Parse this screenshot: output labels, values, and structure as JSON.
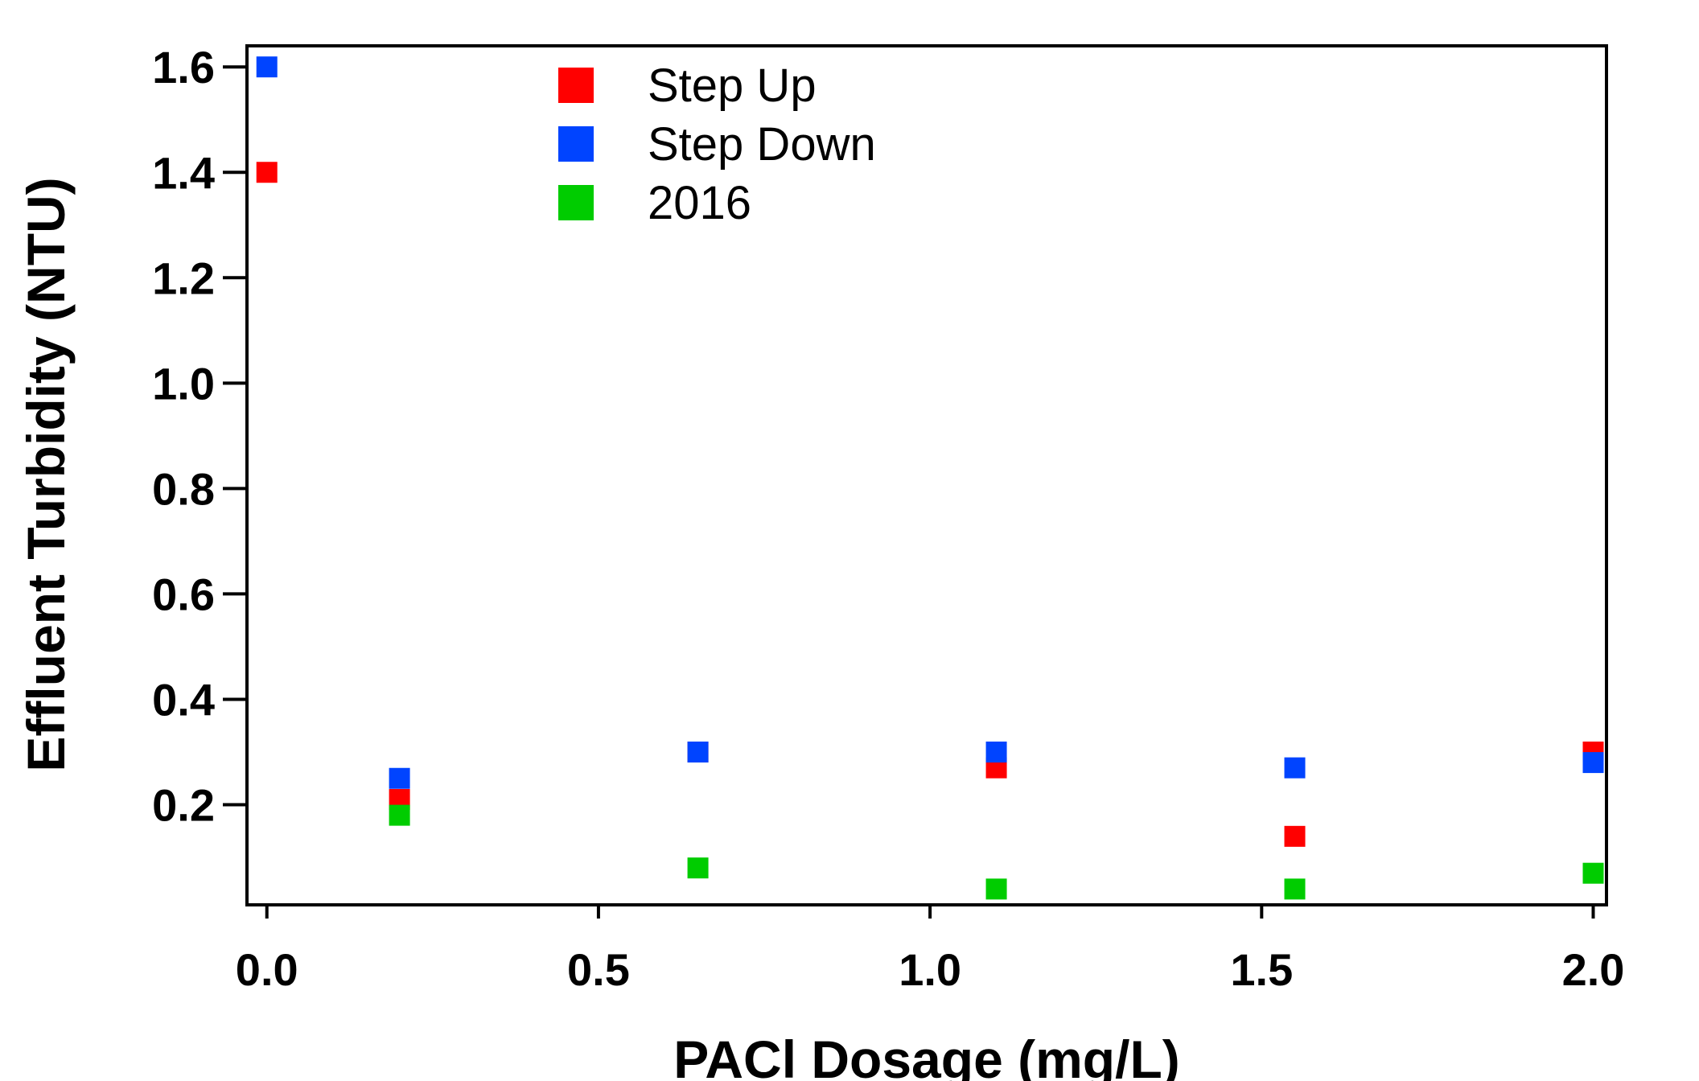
{
  "chart_data": {
    "type": "scatter",
    "xlabel": "PACl Dosage (mg/L)",
    "ylabel": "Effluent Turbidity (NTU)",
    "xlim": [
      -0.03,
      2.02
    ],
    "ylim": [
      0.01,
      1.64
    ],
    "x_ticks": [
      0.0,
      0.5,
      1.0,
      1.5,
      2.0
    ],
    "x_tick_labels": [
      "0.0",
      "0.5",
      "1.0",
      "1.5",
      "2.0"
    ],
    "y_ticks": [
      0.2,
      0.4,
      0.6,
      0.8,
      1.0,
      1.2,
      1.4,
      1.6
    ],
    "y_tick_labels": [
      "0.2",
      "0.4",
      "0.6",
      "0.8",
      "1.0",
      "1.2",
      "1.4",
      "1.6"
    ],
    "grid": false,
    "legend_position": "top-center",
    "series": [
      {
        "name": "Step Up",
        "color": "#ff0000",
        "marker": "square",
        "points": [
          [
            0.0,
            1.4
          ],
          [
            0.2,
            0.21
          ],
          [
            0.65,
            0.3
          ],
          [
            1.1,
            0.27
          ],
          [
            1.55,
            0.14
          ],
          [
            2.0,
            0.3
          ]
        ]
      },
      {
        "name": "Step Down",
        "color": "#0044ff",
        "marker": "square",
        "points": [
          [
            0.0,
            1.6
          ],
          [
            0.2,
            0.25
          ],
          [
            0.65,
            0.3
          ],
          [
            1.1,
            0.3
          ],
          [
            1.55,
            0.27
          ],
          [
            2.0,
            0.28
          ]
        ]
      },
      {
        "name": "2016",
        "color": "#00cc00",
        "marker": "square",
        "points": [
          [
            0.2,
            0.18
          ],
          [
            0.65,
            0.08
          ],
          [
            1.1,
            0.04
          ],
          [
            1.55,
            0.04
          ],
          [
            2.0,
            0.07
          ]
        ]
      }
    ]
  }
}
